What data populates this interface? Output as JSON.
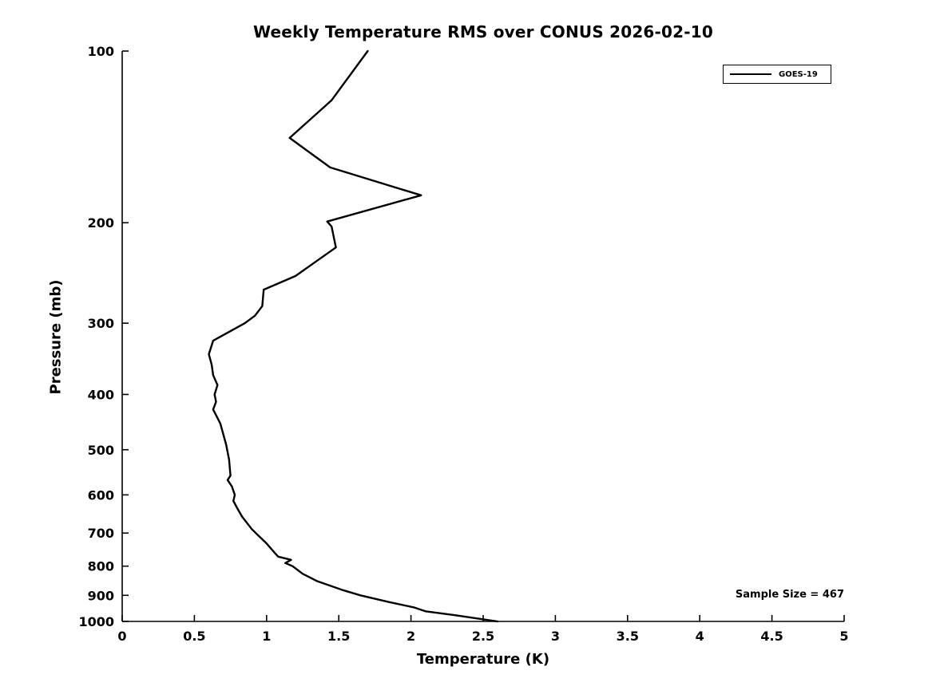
{
  "chart_data": {
    "type": "line",
    "title": "Weekly Temperature RMS over CONUS 2026-02-10",
    "xlabel": "Temperature (K)",
    "ylabel": "Pressure (mb)",
    "xlim": [
      0,
      5
    ],
    "ylim": [
      100,
      1000
    ],
    "y_scale": "log",
    "y_inverted": true,
    "grid": false,
    "xticks": [
      0,
      0.5,
      1,
      1.5,
      2,
      2.5,
      3,
      3.5,
      4,
      4.5,
      5
    ],
    "xtick_labels": [
      "0",
      "0.5",
      "1",
      "1.5",
      "2",
      "2.5",
      "3",
      "3.5",
      "4",
      "4.5",
      "5"
    ],
    "yticks": [
      100,
      200,
      300,
      400,
      500,
      600,
      700,
      800,
      900,
      1000
    ],
    "ytick_labels": [
      "100",
      "200",
      "300",
      "400",
      "500",
      "600",
      "700",
      "800",
      "900",
      "1000"
    ],
    "legend": {
      "position": "top-right",
      "entries": [
        {
          "label": "GOES-19",
          "color": "#000000"
        }
      ]
    },
    "annotation": "Sample Size = 467",
    "line_color": "#000000",
    "series": [
      {
        "name": "GOES-19",
        "color": "#000000",
        "points": [
          [
            1.7,
            100
          ],
          [
            1.45,
            122
          ],
          [
            1.16,
            142
          ],
          [
            1.44,
            160
          ],
          [
            2.07,
            179
          ],
          [
            1.42,
            199
          ],
          [
            1.45,
            203
          ],
          [
            1.48,
            221
          ],
          [
            1.2,
            248
          ],
          [
            0.98,
            262
          ],
          [
            0.97,
            280
          ],
          [
            0.92,
            291
          ],
          [
            0.85,
            300
          ],
          [
            0.63,
            322
          ],
          [
            0.6,
            340
          ],
          [
            0.62,
            355
          ],
          [
            0.63,
            370
          ],
          [
            0.66,
            385
          ],
          [
            0.64,
            400
          ],
          [
            0.65,
            412
          ],
          [
            0.63,
            425
          ],
          [
            0.68,
            450
          ],
          [
            0.72,
            490
          ],
          [
            0.74,
            520
          ],
          [
            0.75,
            555
          ],
          [
            0.73,
            565
          ],
          [
            0.76,
            580
          ],
          [
            0.78,
            600
          ],
          [
            0.77,
            615
          ],
          [
            0.8,
            635
          ],
          [
            0.83,
            655
          ],
          [
            0.9,
            690
          ],
          [
            0.95,
            710
          ],
          [
            1.0,
            730
          ],
          [
            1.05,
            755
          ],
          [
            1.08,
            770
          ],
          [
            1.17,
            780
          ],
          [
            1.13,
            790
          ],
          [
            1.18,
            800
          ],
          [
            1.25,
            825
          ],
          [
            1.35,
            850
          ],
          [
            1.52,
            880
          ],
          [
            1.65,
            900
          ],
          [
            1.85,
            925
          ],
          [
            2.02,
            945
          ],
          [
            2.1,
            960
          ],
          [
            2.3,
            975
          ],
          [
            2.6,
            1000
          ]
        ]
      }
    ]
  }
}
